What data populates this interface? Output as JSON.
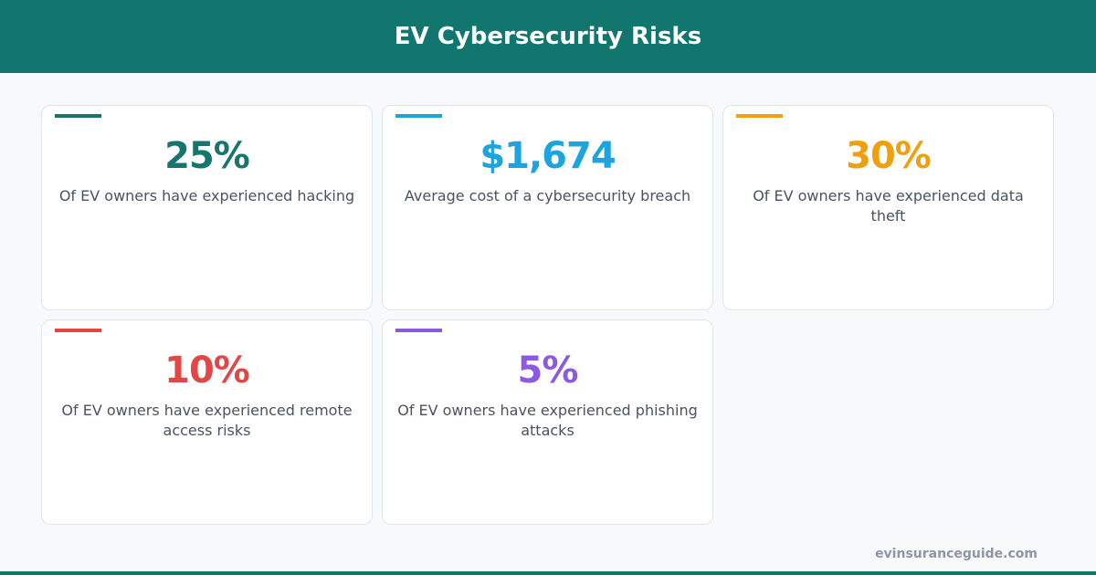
{
  "header": {
    "title": "EV Cybersecurity Risks"
  },
  "cards": [
    {
      "value": "25%",
      "description": "Of EV owners have experienced hacking",
      "color": "#16766e"
    },
    {
      "value": "$1,674",
      "description": "Average cost of a cybersecurity breach",
      "color": "#1ba4de"
    },
    {
      "value": "30%",
      "description": "Of EV owners have experienced data theft",
      "color": "#f0a00f"
    },
    {
      "value": "10%",
      "description": "Of EV owners have experienced remote access risks",
      "color": "#e04747"
    },
    {
      "value": "5%",
      "description": "Of EV owners have experienced phishing attacks",
      "color": "#8c5ae0"
    }
  ],
  "footer": {
    "source": "evinsuranceguide.com"
  }
}
